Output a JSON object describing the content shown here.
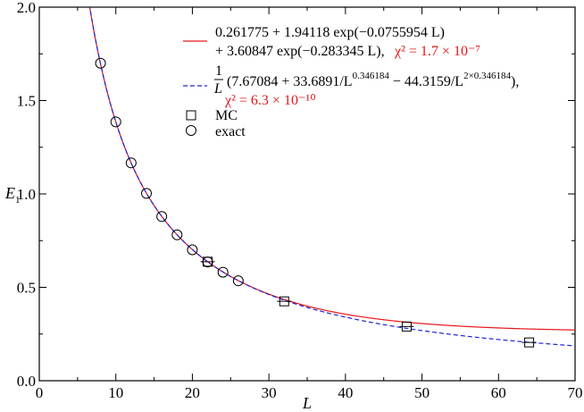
{
  "chart_data": {
    "type": "scatter",
    "xlabel": "L",
    "ylabel": "E",
    "ylabel_sub": "1",
    "xlim": [
      0,
      70
    ],
    "ylim": [
      0.0,
      2.0
    ],
    "x_ticks": [
      "0",
      "10",
      "20",
      "30",
      "40",
      "50",
      "60",
      "70"
    ],
    "y_ticks": [
      "0.0",
      "0.5",
      "1.0",
      "1.5",
      "2.0"
    ],
    "grid": false,
    "legend_position": "top-right",
    "series": [
      {
        "name": "MC",
        "marker": "square",
        "x": [
          22,
          32,
          48,
          64
        ],
        "y": [
          0.637,
          0.425,
          0.29,
          0.205
        ]
      },
      {
        "name": "exact",
        "marker": "circle",
        "x": [
          8,
          10,
          12,
          14,
          16,
          18,
          20,
          22,
          24,
          26
        ],
        "y": [
          1.7,
          1.386,
          1.166,
          1.003,
          0.879,
          0.781,
          0.701,
          0.636,
          0.581,
          0.535
        ]
      }
    ],
    "fits": [
      {
        "kind": "exponential",
        "color": "#e8141a",
        "style": "solid",
        "params": {
          "a": 0.261775,
          "b": 1.94118,
          "c": 0.0755954,
          "d": 3.60847,
          "e": 0.283345
        },
        "line1": "0.261775 + 1.94118 exp(−0.0755954 L)",
        "line2": "+ 3.60847 exp(−0.283345 L),",
        "chi2": "χ² = 1.7 × 10⁻⁷"
      },
      {
        "kind": "power",
        "color": "#1f25d6",
        "style": "dashed",
        "params": {
          "a": 7.67084,
          "b": 33.6891,
          "p": 0.346184,
          "c": 44.3159
        },
        "frac_num": "1",
        "frac_den": "L",
        "expr_a": "(7.67084 + 33.6891/L",
        "exp_a": "0.346184",
        "expr_b": " − 44.3159/L",
        "exp_b": "2×0.346184",
        "expr_c": "),",
        "chi2": "χ² = 6.3 × 10⁻¹⁰"
      }
    ]
  }
}
